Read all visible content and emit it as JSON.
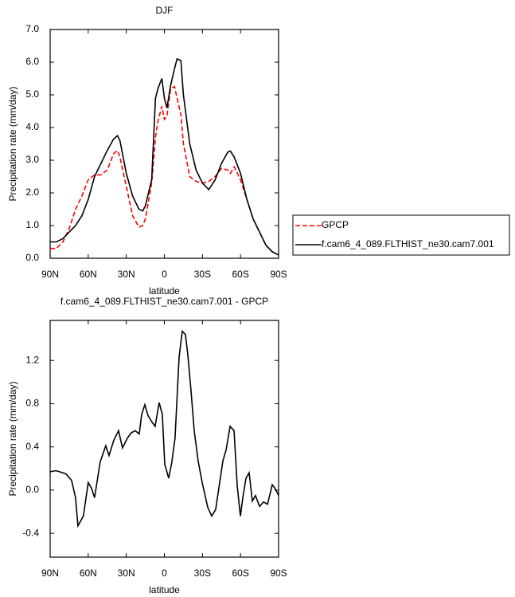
{
  "chart_data": [
    {
      "type": "line",
      "title": "DJF",
      "x_label": "latitude",
      "y_label": "Precipitation rate (mm/day)",
      "x": [
        90,
        85,
        80,
        75,
        70,
        65,
        60,
        55,
        50,
        45,
        40,
        37,
        35,
        30,
        25,
        20,
        17,
        15,
        10,
        7,
        5,
        2,
        0,
        -2,
        -5,
        -8,
        -10,
        -13,
        -15,
        -20,
        -25,
        -30,
        -35,
        -40,
        -45,
        -50,
        -52,
        -55,
        -60,
        -65,
        -70,
        -75,
        -80,
        -85,
        -90
      ],
      "series": [
        {
          "name": "GPCP",
          "color": "#ff0000",
          "dashed": true,
          "values": [
            0.3,
            0.3,
            0.5,
            0.9,
            1.5,
            1.9,
            2.4,
            2.55,
            2.55,
            2.7,
            3.2,
            3.3,
            3.1,
            2.2,
            1.3,
            0.95,
            1.0,
            1.2,
            2.3,
            3.7,
            4.2,
            4.65,
            4.25,
            4.35,
            5.2,
            5.25,
            4.9,
            4.4,
            3.5,
            2.5,
            2.35,
            2.3,
            2.35,
            2.5,
            2.75,
            2.7,
            2.6,
            2.8,
            2.4,
            1.8,
            1.2,
            0.8,
            0.4,
            0.2,
            0.1
          ]
        },
        {
          "name": "f.cam6_4_089.FLTHIST_ne30.cam7.001",
          "color": "#000000",
          "dashed": false,
          "values": [
            0.5,
            0.5,
            0.6,
            0.8,
            1.0,
            1.3,
            1.8,
            2.5,
            2.9,
            3.3,
            3.65,
            3.75,
            3.6,
            2.6,
            1.9,
            1.5,
            1.45,
            1.6,
            2.4,
            4.9,
            5.2,
            5.5,
            4.9,
            4.6,
            5.3,
            5.8,
            6.1,
            6.05,
            5.0,
            3.5,
            2.7,
            2.3,
            2.1,
            2.4,
            2.9,
            3.25,
            3.28,
            3.1,
            2.6,
            1.8,
            1.2,
            0.8,
            0.4,
            0.2,
            0.1
          ]
        }
      ],
      "xlim": [
        90,
        -90
      ],
      "xticks": [
        {
          "value": 90,
          "label": "90N"
        },
        {
          "value": 60,
          "label": "60N"
        },
        {
          "value": 30,
          "label": "30N"
        },
        0,
        {
          "value": -30,
          "label": "30S"
        },
        {
          "value": -60,
          "label": "60S"
        },
        {
          "value": -90,
          "label": "90S"
        }
      ],
      "ylim": [
        0,
        7
      ],
      "yticks": [
        {
          "value": 0,
          "label": "0.0"
        },
        {
          "value": 1,
          "label": "1.0"
        },
        {
          "value": 2,
          "label": "2.0"
        },
        {
          "value": 3,
          "label": "3.0"
        },
        {
          "value": 4,
          "label": "4.0"
        },
        {
          "value": 5,
          "label": "5.0"
        },
        {
          "value": 6,
          "label": "6.0"
        },
        {
          "value": 7,
          "label": "7.0"
        }
      ],
      "legend": "right"
    },
    {
      "type": "line",
      "title": "f.cam6_4_089.FLTHIST_ne30.cam7.001 - GPCP",
      "x_label": "latitude",
      "y_label": "Precipitation rate (mm/day)",
      "x": [
        90,
        85.6,
        82.5,
        77.5,
        73.1,
        70,
        68.1,
        63.8,
        60,
        57.5,
        55,
        50.6,
        46.2,
        43.6,
        39.9,
        36.1,
        33,
        29.2,
        26.1,
        23,
        19.8,
        17.9,
        15.4,
        12.9,
        9.8,
        7.3,
        4.1,
        1.6,
        -0.3,
        -3.4,
        -5.9,
        -8.4,
        -11.6,
        -14.1,
        -16.6,
        -18.5,
        -21,
        -23.5,
        -26.6,
        -29.8,
        -34.2,
        -37.3,
        -40.4,
        -43.6,
        -46.1,
        -48.6,
        -51.8,
        -54.9,
        -57.4,
        -59.9,
        -61.8,
        -64.3,
        -66.8,
        -69.3,
        -71.8,
        -75,
        -78.1,
        -81.3,
        -85,
        -87.5,
        -90
      ],
      "series": [
        {
          "color": "#000000",
          "dashed": false,
          "values": [
            0.17,
            0.18,
            0.17,
            0.15,
            0.09,
            -0.07,
            -0.33,
            -0.24,
            0.07,
            0.02,
            -0.07,
            0.26,
            0.41,
            0.32,
            0.46,
            0.55,
            0.39,
            0.48,
            0.53,
            0.55,
            0.52,
            0.7,
            0.79,
            0.69,
            0.63,
            0.59,
            0.81,
            0.7,
            0.24,
            0.11,
            0.26,
            0.48,
            1.23,
            1.47,
            1.44,
            1.25,
            0.92,
            0.55,
            0.27,
            0.07,
            -0.16,
            -0.24,
            -0.18,
            0.07,
            0.27,
            0.37,
            0.59,
            0.55,
            0.04,
            -0.24,
            -0.07,
            0.11,
            0.16,
            -0.1,
            -0.05,
            -0.15,
            -0.11,
            -0.13,
            0.05,
            0.01,
            -0.05
          ]
        }
      ],
      "xlim": [
        90,
        -90
      ],
      "xticks": [
        {
          "value": 90,
          "label": "90N"
        },
        {
          "value": 60,
          "label": "60N"
        },
        {
          "value": 30,
          "label": "30N"
        },
        0,
        {
          "value": -30,
          "label": "30S"
        },
        {
          "value": -60,
          "label": "60S"
        },
        {
          "value": -90,
          "label": "90S"
        }
      ],
      "ylim": [
        -0.62,
        1.57
      ],
      "yticks": [
        -0.4,
        {
          "value": 0,
          "label": "0.0"
        },
        0.4,
        0.8,
        1.2
      ]
    }
  ]
}
